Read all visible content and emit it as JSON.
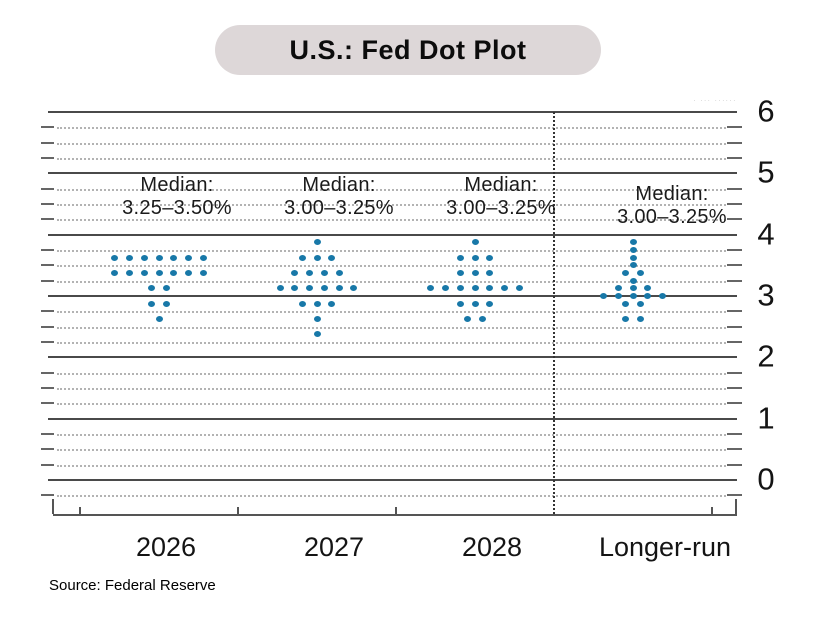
{
  "title": "U.S.: Fed Dot Plot",
  "source": "Source: Federal Reserve",
  "watermark": "· ··· ······",
  "colors": {
    "dot": "#1878a8",
    "pill_bg": "#ddd7d8",
    "major_gridline": "#4a4a4a",
    "minor_gridline": "#b3b3b3",
    "tick": "#666666",
    "axis": "#555555",
    "text": "#141414"
  },
  "chart_data": {
    "type": "scatter",
    "title": "U.S.: Fed Dot Plot",
    "xlabel": "",
    "ylabel": "",
    "ylim": [
      0,
      6
    ],
    "ytick_labels": [
      "6",
      "5",
      "4",
      "3",
      "2",
      "1",
      "0"
    ],
    "minor_grid_step": 0.25,
    "grid": "major solid at integers, dotted minor lines every 0.25",
    "legend": null,
    "separator_before_category": "Longer-run",
    "categories": [
      {
        "label": "2026",
        "median_label": "Median:",
        "median_range": "3.25–3.50%",
        "distribution": [
          {
            "rate": 3.625,
            "count": 7
          },
          {
            "rate": 3.375,
            "count": 7
          },
          {
            "rate": 3.125,
            "count": 2
          },
          {
            "rate": 2.875,
            "count": 2
          },
          {
            "rate": 2.625,
            "count": 1
          }
        ]
      },
      {
        "label": "2027",
        "median_label": "Median:",
        "median_range": "3.00–3.25%",
        "distribution": [
          {
            "rate": 3.875,
            "count": 1
          },
          {
            "rate": 3.625,
            "count": 3
          },
          {
            "rate": 3.375,
            "count": 4
          },
          {
            "rate": 3.125,
            "count": 6
          },
          {
            "rate": 2.875,
            "count": 3
          },
          {
            "rate": 2.625,
            "count": 1
          },
          {
            "rate": 2.375,
            "count": 1
          }
        ]
      },
      {
        "label": "2028",
        "median_label": "Median:",
        "median_range": "3.00–3.25%",
        "distribution": [
          {
            "rate": 3.875,
            "count": 1
          },
          {
            "rate": 3.625,
            "count": 3
          },
          {
            "rate": 3.375,
            "count": 3
          },
          {
            "rate": 3.125,
            "count": 7
          },
          {
            "rate": 2.875,
            "count": 3
          },
          {
            "rate": 2.625,
            "count": 2
          }
        ]
      },
      {
        "label": "Longer-run",
        "median_label": "Median:",
        "median_range": "3.00–3.25%",
        "distribution": [
          {
            "rate": 3.875,
            "count": 1
          },
          {
            "rate": 3.75,
            "count": 1
          },
          {
            "rate": 3.625,
            "count": 1
          },
          {
            "rate": 3.5,
            "count": 1
          },
          {
            "rate": 3.375,
            "count": 2
          },
          {
            "rate": 3.25,
            "count": 1
          },
          {
            "rate": 3.125,
            "count": 3
          },
          {
            "rate": 3.0,
            "count": 5
          },
          {
            "rate": 2.875,
            "count": 2
          },
          {
            "rate": 2.625,
            "count": 2
          }
        ]
      }
    ]
  }
}
